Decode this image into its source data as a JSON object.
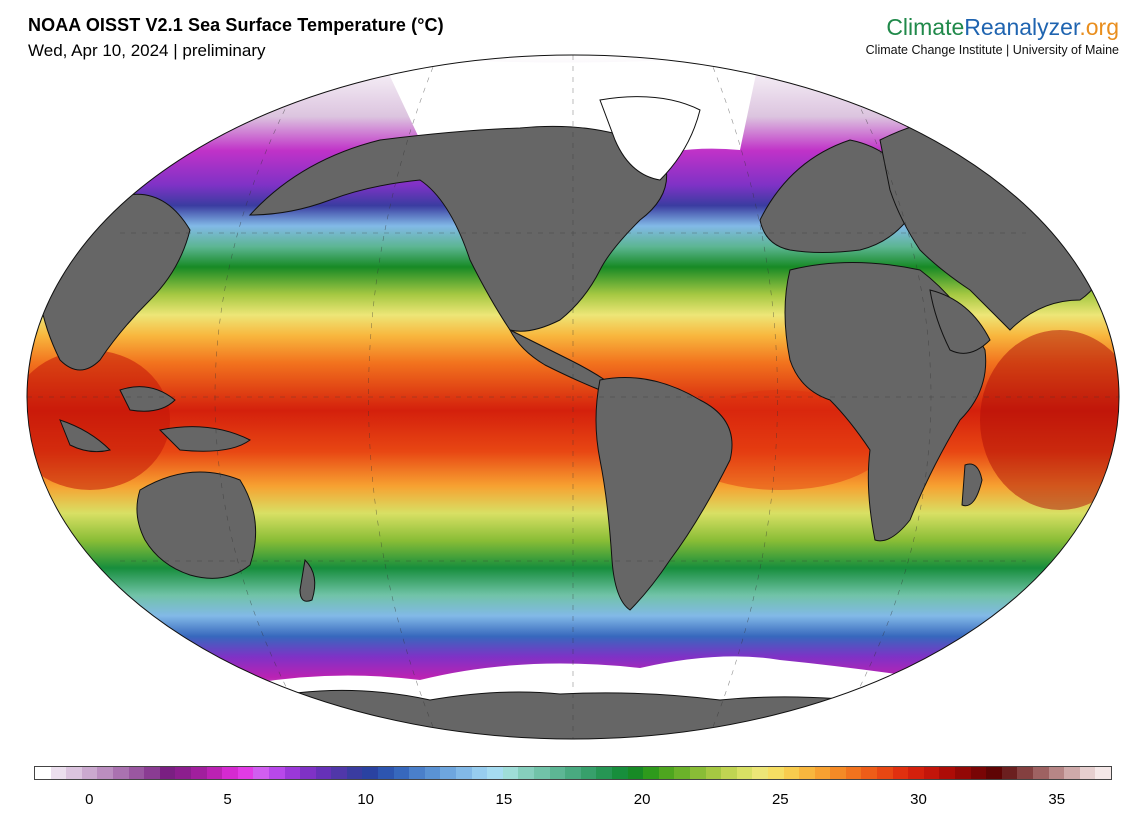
{
  "header": {
    "title": "NOAA OISST V2.1 Sea Surface Temperature (°C)",
    "subtitle": "Wed, Apr 10, 2024 | preliminary"
  },
  "brand": {
    "name_part1": "Climate",
    "name_part2": "Reanalyzer",
    "name_part3": ".org",
    "subtitle": "Climate Change Institute | University of Maine",
    "colors": {
      "part1": "#20894a",
      "part2": "#1f64b0",
      "part3": "#e98e1e"
    }
  },
  "map": {
    "projection": "Robinson-like world ellipse",
    "variable": "Sea Surface Temperature",
    "units": "°C",
    "land_color": "#666666",
    "ice_color": "#ffffff"
  },
  "colorbar": {
    "min": -2,
    "max": 37,
    "tick_labels": [
      "0",
      "5",
      "10",
      "15",
      "20",
      "25",
      "30",
      "35"
    ],
    "colors": [
      "#ffffff",
      "#ecdfee",
      "#dcc4df",
      "#cba9cf",
      "#bb8ec0",
      "#aa72b0",
      "#9a57a1",
      "#8a3c92",
      "#7a1f82",
      "#8c1e8e",
      "#a11f9d",
      "#bb22b3",
      "#d52ad0",
      "#e23be5",
      "#d15ef0",
      "#b848ea",
      "#9b38d9",
      "#7f32c6",
      "#6631b8",
      "#5037a9",
      "#3a3ca0",
      "#2a42a1",
      "#2d55b0",
      "#3768bd",
      "#4a7fca",
      "#5a92d4",
      "#6ea6de",
      "#82b9e7",
      "#97cdef",
      "#a6dcf1",
      "#9fddd8",
      "#86cfbd",
      "#71c3a8",
      "#5db694",
      "#49aa80",
      "#37a06b",
      "#269654",
      "#178e3c",
      "#178a25",
      "#2e9a1c",
      "#4ea61f",
      "#6bb22a",
      "#89bd36",
      "#a5c842",
      "#c0d452",
      "#d8e064",
      "#ede677",
      "#f6de63",
      "#f8cc4e",
      "#f8b73e",
      "#f7a131",
      "#f58a26",
      "#f2731e",
      "#ee5d18",
      "#e84713",
      "#e0300f",
      "#d4200c",
      "#c3150a",
      "#ad0c07",
      "#930806",
      "#790505",
      "#5f0404",
      "#6b1f1f",
      "#844040",
      "#9e6262",
      "#b78686",
      "#cfaaaa",
      "#e6cfcf",
      "#f5e8e8"
    ]
  }
}
